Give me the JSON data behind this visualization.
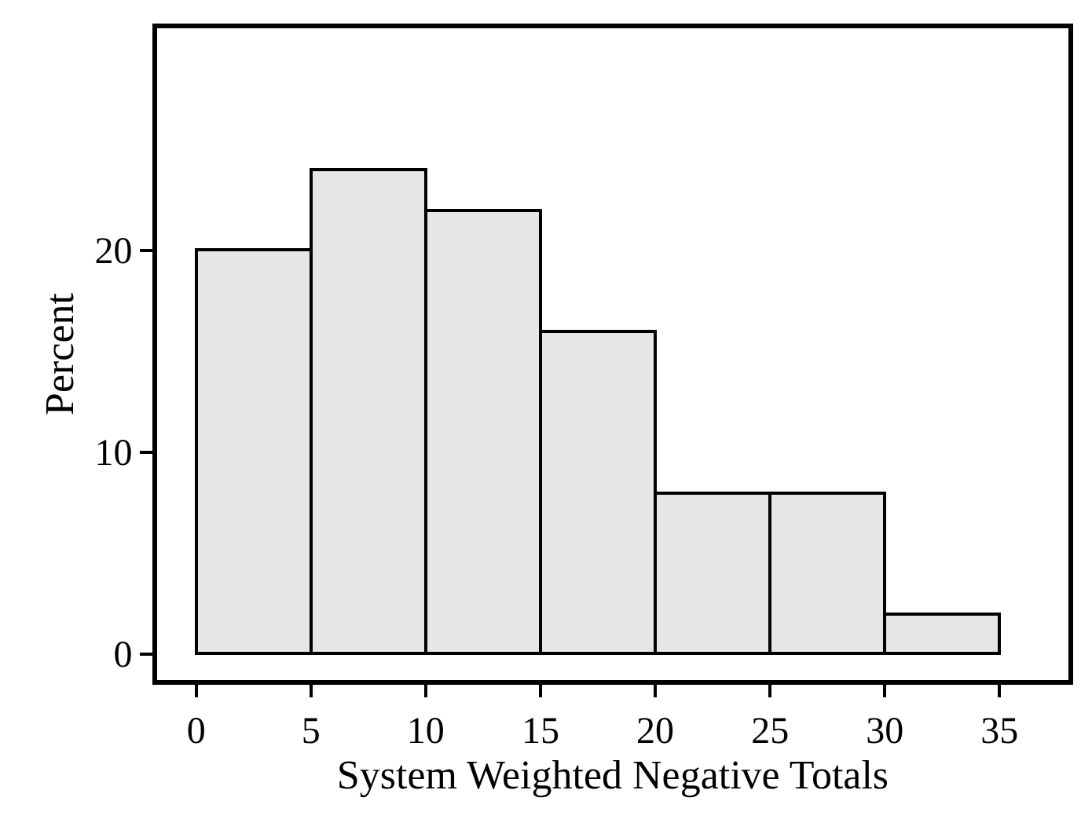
{
  "chart_data": {
    "type": "histogram",
    "xlabel": "System Weighted Negative Totals",
    "ylabel": "Percent",
    "bins": [
      0,
      5,
      10,
      15,
      20,
      25,
      30,
      35
    ],
    "values": [
      20,
      24,
      22,
      16,
      8,
      8,
      2
    ],
    "color": "#e6e6e6",
    "xlim": [
      -1.7,
      38
    ],
    "ylim": [
      -1.3,
      31
    ],
    "xticks": [
      0,
      5,
      10,
      15,
      20,
      25,
      30,
      35
    ],
    "yticks": [
      0,
      10,
      20
    ]
  }
}
